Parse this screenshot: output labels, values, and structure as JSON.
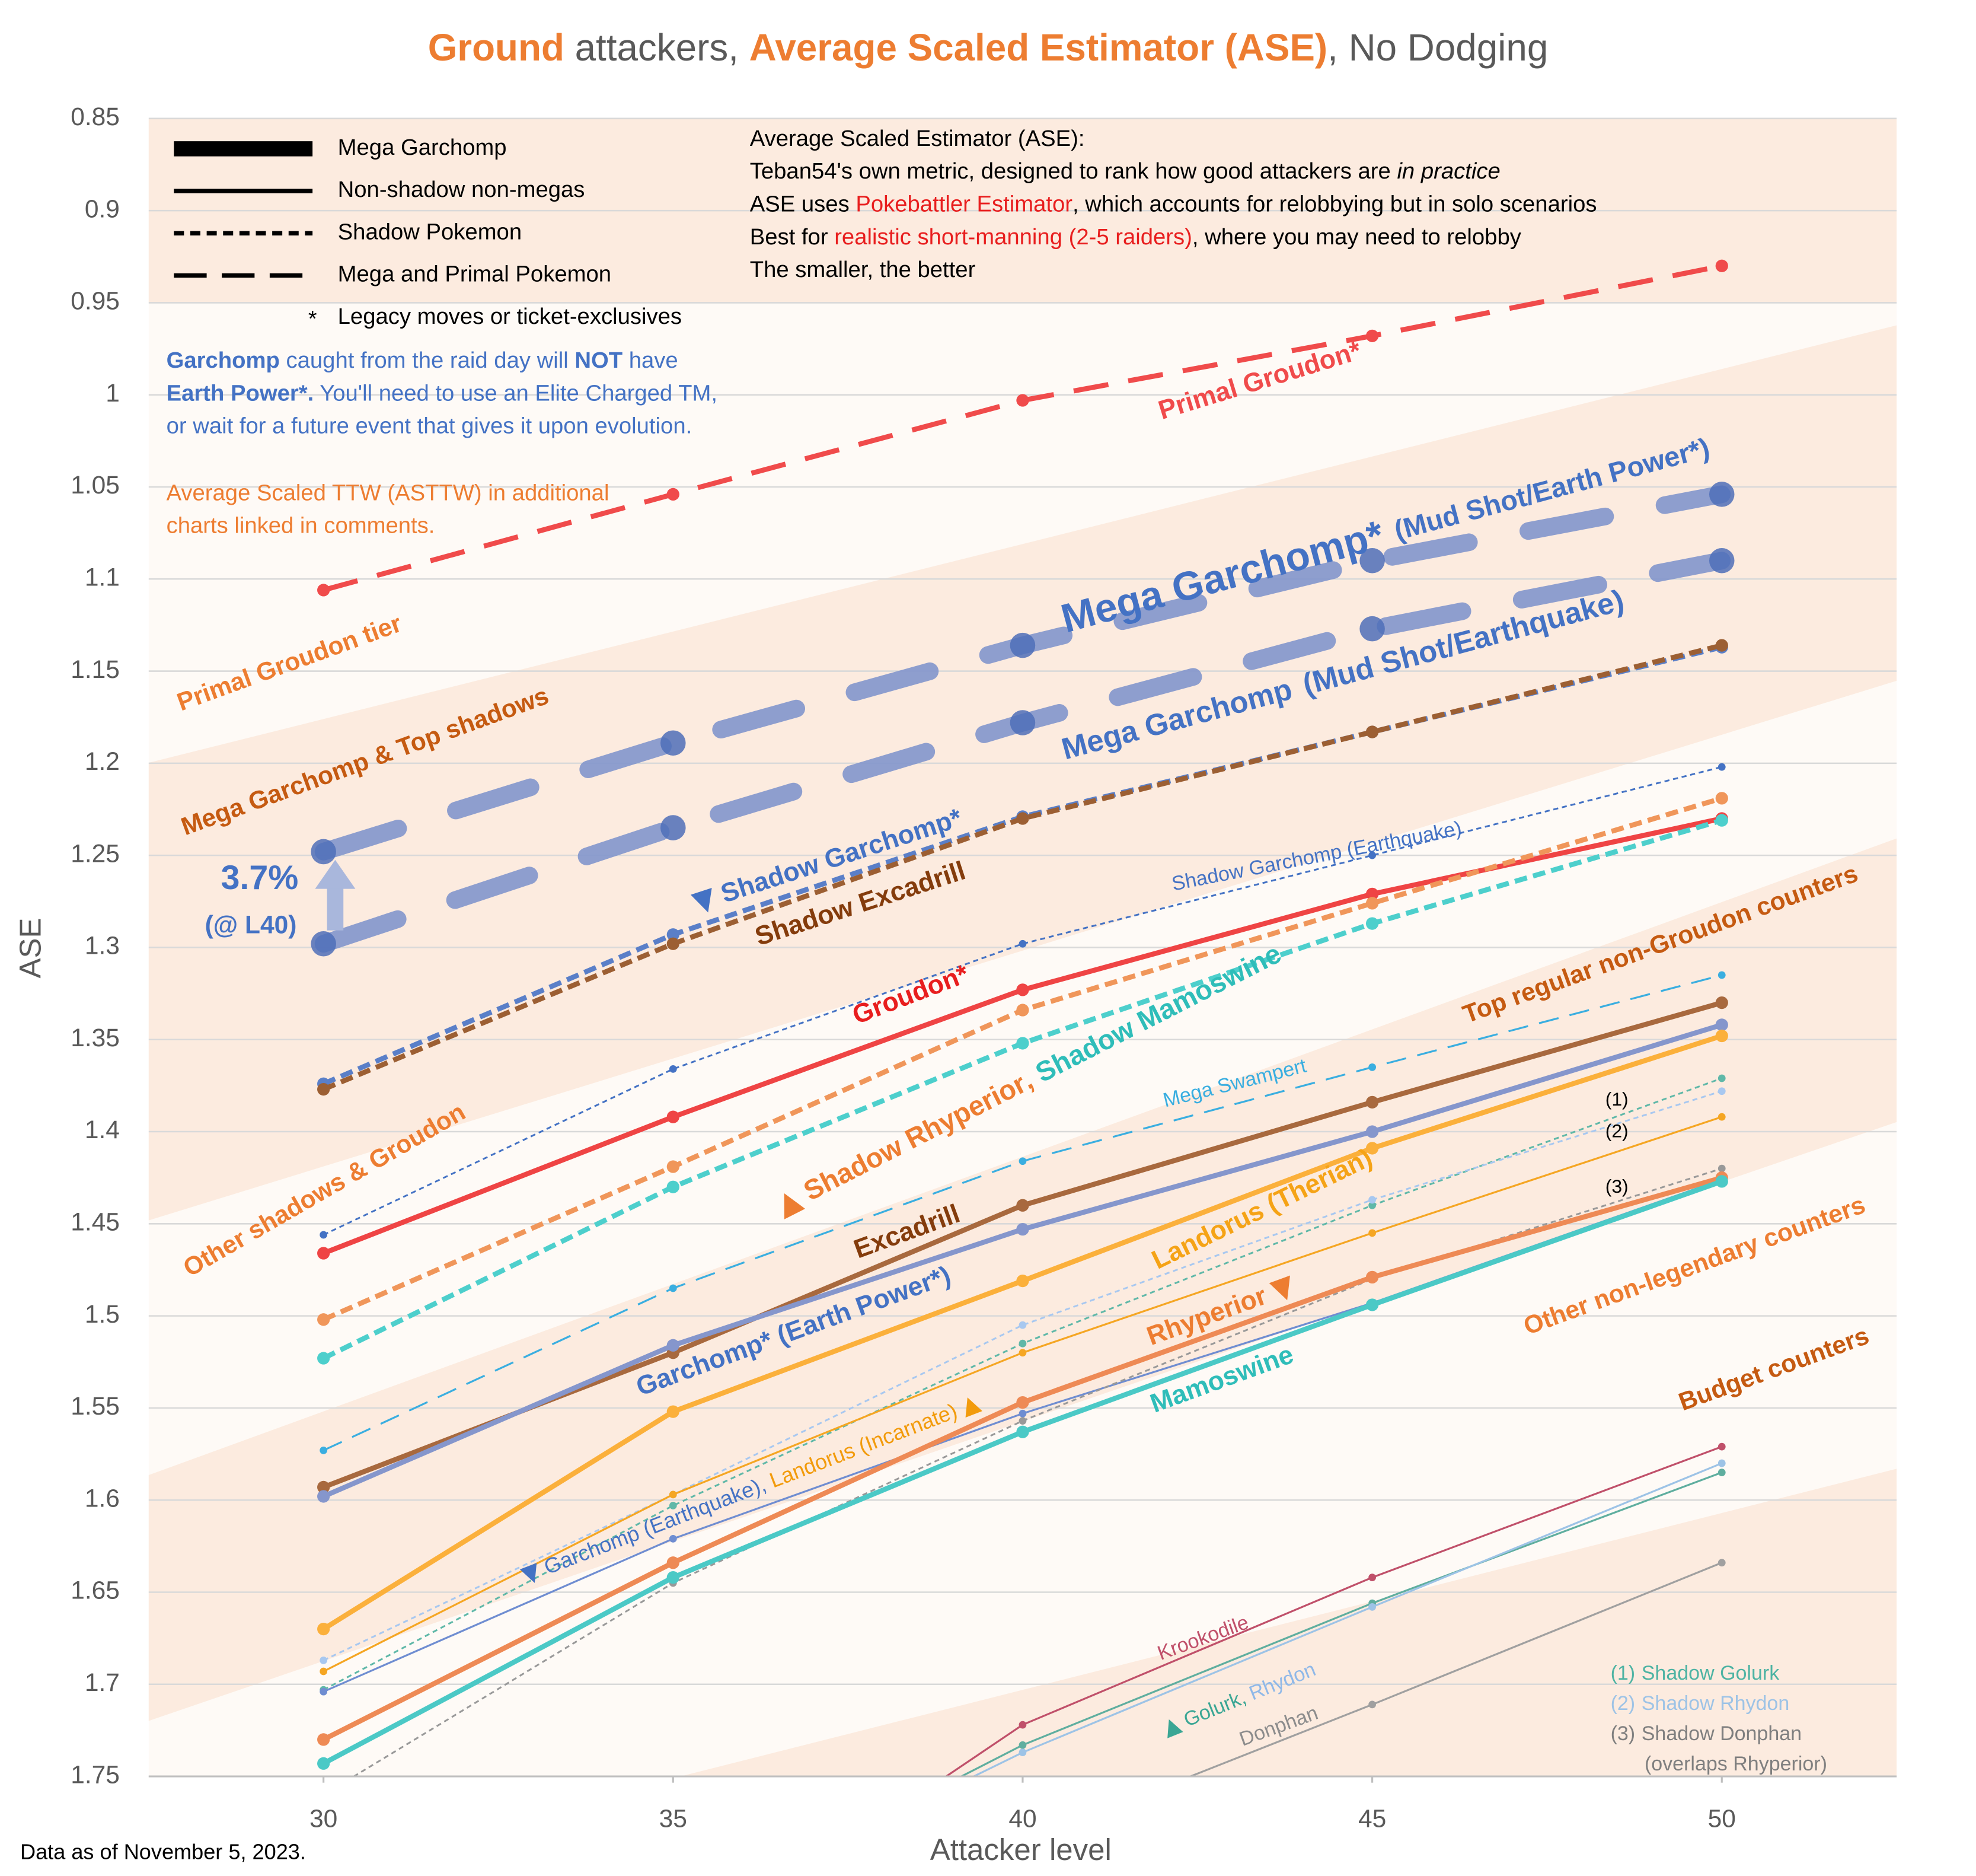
{
  "chart_data": {
    "type": "line",
    "title_parts": [
      "Ground",
      " attackers, ",
      "Average Scaled Estimator (ASE)",
      ", No Dodging"
    ],
    "x_label": "Attacker level",
    "y_label": "ASE",
    "x": [
      30,
      35,
      40,
      45,
      50
    ],
    "xlim": [
      27.5,
      52.5
    ],
    "xticks": [
      30,
      35,
      40,
      45,
      50
    ],
    "ylim": [
      0.85,
      1.75
    ],
    "yticks": [
      0.85,
      0.9,
      0.95,
      1,
      1.05,
      1.1,
      1.15,
      1.2,
      1.25,
      1.3,
      1.35,
      1.4,
      1.45,
      1.5,
      1.55,
      1.6,
      1.65,
      1.7,
      1.75
    ],
    "y_inverted": true,
    "grid": true,
    "label_joiner": ", ",
    "series": [
      {
        "name": "Primal Groudon*",
        "color": "#f04b4b",
        "style": "primal",
        "values": [
          1.106,
          1.054,
          1.003,
          0.968,
          0.93
        ]
      },
      {
        "name": "Mega Garchomp*",
        "moves": "(Mud Shot/Earth Power*)",
        "color": "#8497cc",
        "style": "mega-garchomp",
        "values": [
          1.248,
          1.189,
          1.136,
          1.09,
          1.054
        ]
      },
      {
        "name": "Mega Garchomp",
        "moves": "(Mud Shot/Earthquake)",
        "color": "#8497cc",
        "style": "mega-garchomp",
        "values": [
          1.298,
          1.235,
          1.178,
          1.127,
          1.09
        ]
      },
      {
        "name": "Shadow Garchomp*",
        "color": "#5a7fc8",
        "style": "shadow-thick",
        "values": [
          1.374,
          1.293,
          1.229,
          1.183,
          1.137
        ]
      },
      {
        "name": "Shadow Excadrill",
        "color": "#9c5f33",
        "style": "shadow-thick",
        "values": [
          1.377,
          1.298,
          1.23,
          1.183,
          1.136
        ]
      },
      {
        "name": "Shadow Garchomp (Earthquake)",
        "color": "#4472c4",
        "style": "shadow-thin",
        "values": [
          1.456,
          1.366,
          1.298,
          1.25,
          1.202
        ]
      },
      {
        "name": "Groudon*",
        "color": "#ef4444",
        "style": "solid-thick",
        "values": [
          1.466,
          1.392,
          1.323,
          1.271,
          1.23
        ]
      },
      {
        "name": "Shadow Rhyperior",
        "color": "#f0965a",
        "style": "shadow-thick",
        "values": [
          1.502,
          1.419,
          1.334,
          1.276,
          1.219
        ]
      },
      {
        "name": "Shadow Mamoswine",
        "color": "#4dcfcc",
        "style": "shadow-thick",
        "values": [
          1.523,
          1.43,
          1.352,
          1.287,
          1.231
        ]
      },
      {
        "name": "Mega Swampert",
        "color": "#3aaee0",
        "style": "mega-thin",
        "values": [
          1.573,
          1.485,
          1.416,
          1.365,
          1.315
        ]
      },
      {
        "name": "Excadrill",
        "color": "#a8693e",
        "style": "solid-thick",
        "values": [
          1.593,
          1.52,
          1.44,
          1.384,
          1.33
        ]
      },
      {
        "name": "Garchomp* (Earth Power*)",
        "color": "#8596cc",
        "style": "solid-thick",
        "values": [
          1.598,
          1.516,
          1.453,
          1.4,
          1.342
        ]
      },
      {
        "name": "Landorus (Therian)",
        "color": "#fbb03b",
        "style": "solid-thick",
        "values": [
          1.67,
          1.552,
          1.481,
          1.409,
          1.348
        ]
      },
      {
        "name": "Shadow Golurk",
        "mark": "(1)",
        "color": "#5fb8a8",
        "style": "shadow-thin",
        "values": [
          1.703,
          1.603,
          1.515,
          1.44,
          1.371
        ]
      },
      {
        "name": "Shadow Rhydon",
        "mark": "(2)",
        "color": "#a8c8f0",
        "style": "shadow-thin",
        "values": [
          1.687,
          1.597,
          1.505,
          1.437,
          1.378
        ]
      },
      {
        "name": "Landorus (Incarnate)",
        "color": "#f5a623",
        "style": "solid-thin",
        "values": [
          1.693,
          1.597,
          1.52,
          1.455,
          1.392
        ]
      },
      {
        "name": "Garchomp (Earthquake)",
        "color": "#6f8dd1",
        "style": "solid-thin",
        "values": [
          1.704,
          1.621,
          1.553,
          1.493,
          1.426
        ]
      },
      {
        "name": "Shadow Donphan",
        "mark": "(3)",
        "note": "(overlaps Rhyperior)",
        "color": "#999999",
        "style": "shadow-thin",
        "values": [
          1.76,
          1.645,
          1.557,
          1.48,
          1.42
        ]
      },
      {
        "name": "Rhyperior",
        "color": "#ee8a55",
        "style": "solid-thick",
        "values": [
          1.73,
          1.634,
          1.547,
          1.479,
          1.425
        ]
      },
      {
        "name": "Mamoswine",
        "color": "#4bc9c6",
        "style": "solid-thick",
        "values": [
          1.743,
          1.642,
          1.563,
          1.494,
          1.427
        ]
      },
      {
        "name": "Krookodile",
        "color": "#c0506a",
        "style": "solid-thin",
        "values": [
          null,
          1.85,
          1.722,
          1.642,
          1.571
        ]
      },
      {
        "name": "Golurk",
        "color": "#5fae9f",
        "style": "solid-thin",
        "values": [
          null,
          1.83,
          1.733,
          1.656,
          1.585
        ]
      },
      {
        "name": "Rhydon",
        "color": "#9dc3e6",
        "style": "solid-thin",
        "values": [
          null,
          1.83,
          1.737,
          1.658,
          1.58
        ]
      },
      {
        "name": "Donphan",
        "color": "#a0a0a0",
        "style": "solid-thin",
        "values": [
          null,
          null,
          1.786,
          1.711,
          1.634
        ]
      }
    ],
    "legend": [
      {
        "label": "Mega Garchomp",
        "style": "mega-garchomp"
      },
      {
        "label": "Non-shadow non-megas",
        "style": "solid"
      },
      {
        "label": "Shadow Pokemon",
        "style": "shadow"
      },
      {
        "label": "Mega and Primal Pokemon",
        "style": "mega"
      },
      {
        "symbol": "*",
        "label": "Legacy moves or ticket-exclusives"
      }
    ],
    "ase_note": [
      [
        "Average Scaled Estimator (ASE):"
      ],
      [
        "Teban54's own metric, designed to rank how good attackers are ",
        "in practice"
      ],
      [
        "ASE uses ",
        "Pokebattler Estimator",
        ", which accounts for relobbying but in solo scenarios"
      ],
      [
        "Best for ",
        "realistic short-manning (2-5 raiders)",
        ", where you may need to relobby"
      ],
      [
        "The smaller, the better"
      ]
    ],
    "garchomp_note": [
      [
        "Garchomp",
        " caught from the raid day will ",
        "NOT",
        " have"
      ],
      [
        "Earth Power*.",
        " You'll need to use an Elite Charged TM,"
      ],
      [
        "or wait for a future event that gives it upon evolution."
      ]
    ],
    "asttw_note": [
      "Average Scaled TTW (ASTTW) in additional",
      "charts linked in comments."
    ],
    "tiers": [
      "Primal Groudon tier",
      "Mega Garchomp & Top shadows",
      "Other shadows & Groudon",
      "Top regular non-Groudon counters",
      "Other non-legendary counters",
      "Budget counters"
    ],
    "gap_annotation": [
      "3.7%",
      "(@ L40)"
    ],
    "source": "Data as of November 5, 2023."
  }
}
